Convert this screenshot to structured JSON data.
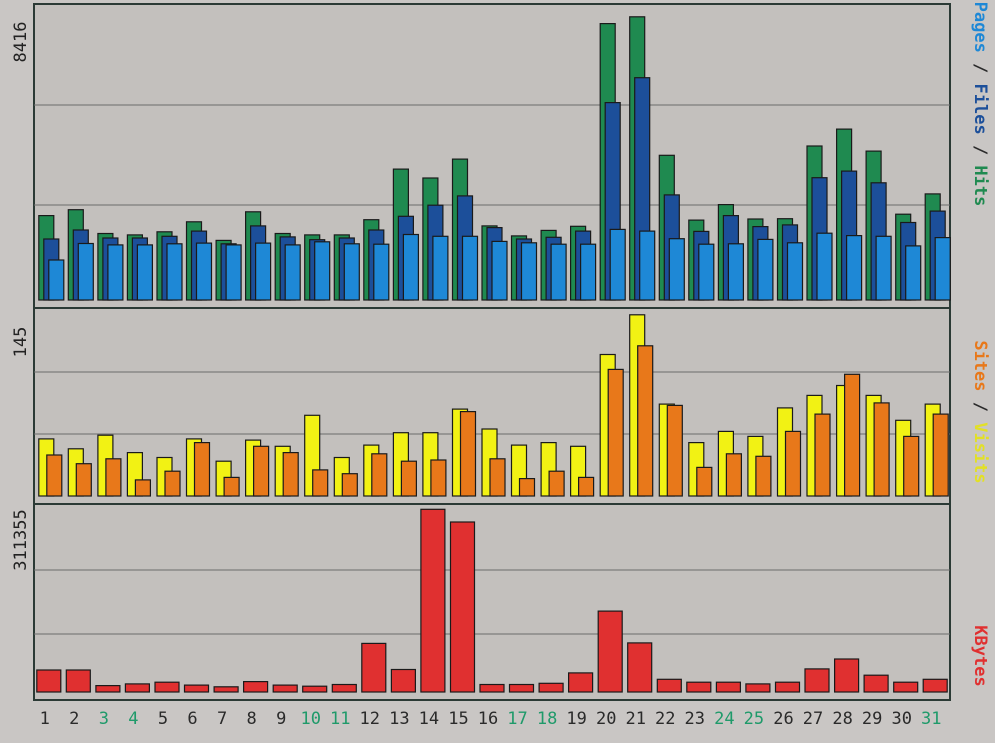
{
  "chart_data": [
    {
      "type": "bar",
      "panel": "hits",
      "title": "",
      "side_legend": [
        {
          "text": "Pages",
          "color": "#1e88d6"
        },
        {
          "text": " / ",
          "color": "#2a2a2a"
        },
        {
          "text": "Files",
          "color": "#1c4f9a"
        },
        {
          "text": " / ",
          "color": "#2a2a2a"
        },
        {
          "text": "Hits",
          "color": "#1f8a50"
        }
      ],
      "ymax_label": "8416",
      "ymax": 8416,
      "grid": true,
      "series": [
        {
          "name": "Hits",
          "color": "#1f8a50",
          "values": [
            2450,
            2620,
            1930,
            1890,
            1980,
            2270,
            1730,
            2560,
            1930,
            1890,
            1890,
            2330,
            3800,
            3540,
            4090,
            2150,
            1860,
            2020,
            2140,
            8020,
            8220,
            4200,
            2320,
            2770,
            2350,
            2360,
            4470,
            4960,
            4320,
            2490,
            3080
          ]
        },
        {
          "name": "Files",
          "color": "#1c4f9a",
          "values": [
            1770,
            2030,
            1800,
            1800,
            1850,
            2000,
            1630,
            2150,
            1830,
            1750,
            1800,
            2030,
            2430,
            2750,
            3020,
            2100,
            1770,
            1820,
            2000,
            5730,
            6450,
            3050,
            1990,
            2450,
            2130,
            2180,
            3550,
            3740,
            3400,
            2250,
            2580
          ]
        },
        {
          "name": "Pages",
          "color": "#1e88d6",
          "values": [
            1160,
            1640,
            1600,
            1600,
            1630,
            1650,
            1600,
            1650,
            1600,
            1690,
            1630,
            1620,
            1900,
            1850,
            1850,
            1700,
            1660,
            1620,
            1620,
            2050,
            2000,
            1780,
            1620,
            1630,
            1760,
            1660,
            1940,
            1870,
            1850,
            1570,
            1810
          ]
        }
      ]
    },
    {
      "type": "bar",
      "panel": "visits",
      "title": "",
      "side_legend": [
        {
          "text": "Sites",
          "color": "#e8781a"
        },
        {
          "text": " / ",
          "color": "#2a2a2a"
        },
        {
          "text": "Visits",
          "color": "#e2e026"
        }
      ],
      "ymax_label": "145",
      "ymax": 145,
      "grid": true,
      "series": [
        {
          "name": "Visits",
          "color": "#f2f214",
          "values": [
            46,
            38,
            49,
            35,
            31,
            46,
            28,
            45,
            40,
            65,
            31,
            41,
            51,
            51,
            70,
            54,
            41,
            43,
            40,
            114,
            146,
            74,
            43,
            52,
            48,
            71,
            81,
            89,
            81,
            61,
            74
          ]
        },
        {
          "name": "Sites",
          "color": "#e8781a",
          "values": [
            33,
            26,
            30,
            13,
            20,
            43,
            15,
            40,
            35,
            21,
            18,
            34,
            28,
            29,
            68,
            30,
            14,
            20,
            15,
            102,
            121,
            73,
            23,
            34,
            32,
            52,
            66,
            98,
            75,
            48,
            66
          ]
        }
      ]
    },
    {
      "type": "bar",
      "panel": "kbytes",
      "title": "",
      "side_legend": [
        {
          "text": "KBytes",
          "color": "#e03030"
        }
      ],
      "ymax_label": "311355",
      "ymax": 311355,
      "grid": true,
      "series": [
        {
          "name": "KBytes",
          "color": "#e03030",
          "values": [
            38000,
            38000,
            11000,
            14000,
            17000,
            12000,
            9000,
            18000,
            12000,
            10000,
            13000,
            84000,
            39000,
            316000,
            294000,
            13000,
            13000,
            15000,
            33000,
            140000,
            85000,
            22000,
            17000,
            17000,
            14000,
            17000,
            40000,
            57000,
            29000,
            17000,
            22000
          ]
        }
      ]
    }
  ],
  "days": [
    "1",
    "2",
    "3",
    "4",
    "5",
    "6",
    "7",
    "8",
    "9",
    "10",
    "11",
    "12",
    "13",
    "14",
    "15",
    "16",
    "17",
    "18",
    "19",
    "20",
    "21",
    "22",
    "23",
    "24",
    "25",
    "26",
    "27",
    "28",
    "29",
    "30",
    "31"
  ],
  "weekend_days": [
    "3",
    "4",
    "10",
    "11",
    "17",
    "18",
    "24",
    "25",
    "31"
  ],
  "colors": {
    "plot_bg": "#c3c0bd",
    "frame": "#2b3a35",
    "grid": "#6b6b6b",
    "outline": "#1a1a1a",
    "day_label": "#2a2a2a",
    "weekend_label": "#1f9a6a",
    "ymax_label": "#222222"
  }
}
